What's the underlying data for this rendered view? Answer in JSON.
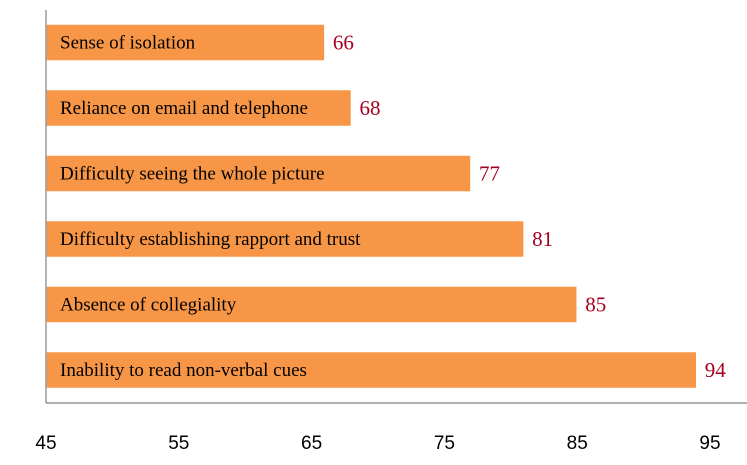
{
  "chart_data": {
    "type": "bar",
    "orientation": "horizontal",
    "categories": [
      "Sense of isolation",
      "Reliance on email and telephone",
      "Difficulty seeing the whole picture",
      "Difficulty establishing rapport and trust",
      "Absence of collegiality",
      "Inability to read non-verbal cues"
    ],
    "values": [
      66,
      68,
      77,
      81,
      85,
      94
    ],
    "value_labels": [
      "66",
      "68",
      "77",
      "81",
      "85",
      "94"
    ],
    "xlim": [
      45,
      95
    ],
    "xticks": [
      "45",
      "55",
      "65",
      "75",
      "85",
      "95"
    ],
    "title": "",
    "xlabel": "",
    "ylabel": "",
    "grid": false,
    "legend": "none",
    "colors": {
      "bar": "#F79646",
      "bar_border": "#FFFFFF",
      "value_label": "#A50021",
      "axis": "#808080"
    }
  }
}
